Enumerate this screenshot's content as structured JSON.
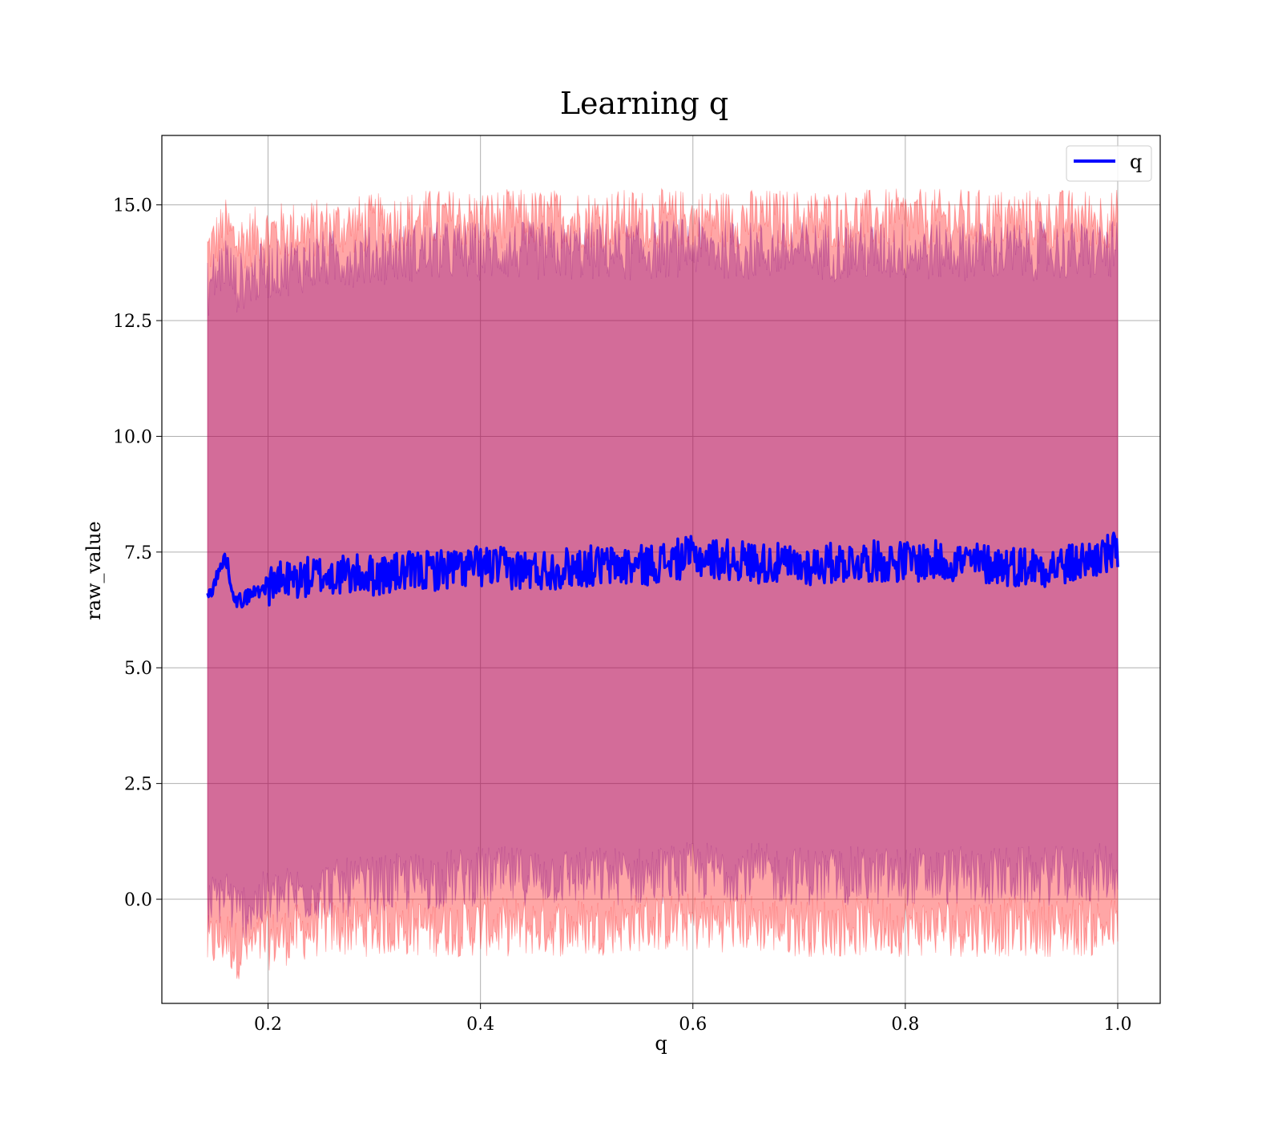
{
  "chart_data": {
    "type": "line",
    "title": "Learning q",
    "xlabel": "q",
    "ylabel": "raw_value",
    "xlim": [
      0.1,
      1.04
    ],
    "ylim": [
      -2.25,
      16.5
    ],
    "xticks": [
      0.2,
      0.4,
      0.6,
      0.8,
      1.0
    ],
    "xtick_labels": [
      "0.2",
      "0.4",
      "0.6",
      "0.8",
      "1.0"
    ],
    "yticks": [
      0.0,
      2.5,
      5.0,
      7.5,
      10.0,
      12.5,
      15.0
    ],
    "ytick_labels": [
      "0.0",
      "2.5",
      "5.0",
      "7.5",
      "10.0",
      "12.5",
      "15.0"
    ],
    "grid": true,
    "legend": {
      "placement": "top-right",
      "entries": [
        "q"
      ]
    },
    "series": [
      {
        "name": "q",
        "color": "#0000ff",
        "x_range": [
          0.143,
          1.0
        ],
        "points_x": [
          0.143,
          0.16,
          0.17,
          0.2,
          0.25,
          0.3,
          0.35,
          0.4,
          0.45,
          0.5,
          0.55,
          0.6,
          0.65,
          0.7,
          0.75,
          0.8,
          0.85,
          0.9,
          0.95,
          1.0
        ],
        "points_y": [
          6.5,
          7.4,
          6.4,
          6.8,
          7.0,
          7.0,
          7.1,
          7.2,
          7.1,
          7.2,
          7.2,
          7.4,
          7.3,
          7.2,
          7.3,
          7.3,
          7.3,
          7.2,
          7.2,
          7.5
        ]
      }
    ],
    "bands": [
      {
        "color": "#ff0000",
        "opacity": 0.35,
        "upper_mean": [
          14.0,
          14.5,
          14.2,
          14.4,
          14.5,
          14.6,
          14.7,
          14.7,
          14.7,
          14.7,
          14.7,
          14.7,
          14.7,
          14.7,
          14.7,
          14.7,
          14.7,
          14.7,
          14.7,
          14.7
        ],
        "lower_mean": [
          -1.0,
          -0.8,
          -1.1,
          -0.9,
          -0.6,
          -0.6,
          -0.6,
          -0.6,
          -0.6,
          -0.6,
          -0.5,
          -0.5,
          -0.5,
          -0.6,
          -0.6,
          -0.6,
          -0.6,
          -0.6,
          -0.6,
          -0.6
        ]
      },
      {
        "color": "#800080",
        "opacity": 0.35,
        "upper_mean": [
          13.2,
          13.8,
          13.3,
          13.6,
          13.8,
          13.9,
          14.0,
          14.0,
          14.0,
          14.0,
          14.0,
          14.1,
          14.0,
          14.0,
          14.0,
          14.0,
          14.0,
          14.0,
          14.0,
          14.0
        ],
        "lower_mean": [
          -0.2,
          0.2,
          -0.3,
          0.0,
          0.2,
          0.3,
          0.4,
          0.5,
          0.5,
          0.5,
          0.5,
          0.6,
          0.6,
          0.5,
          0.5,
          0.5,
          0.5,
          0.5,
          0.5,
          0.6
        ]
      }
    ]
  }
}
